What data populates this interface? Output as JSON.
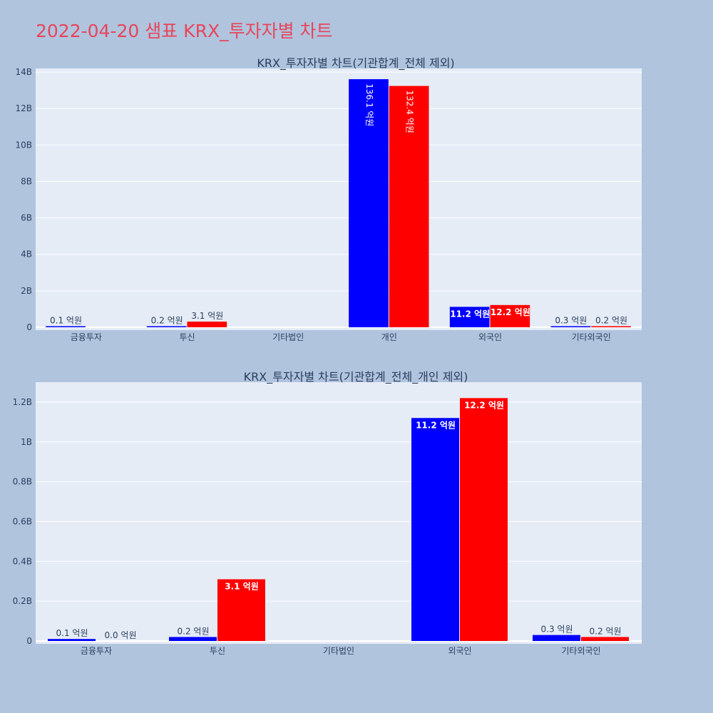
{
  "title": "2022-04-20 샘표 KRX_투자자별 차트",
  "colors": {
    "background": "#b0c4de",
    "plot_bg": "#e5ecf6",
    "series1": "#0000ff",
    "series2": "#ff0000",
    "title": "#e8455a",
    "axis_text": "#2a3f5f"
  },
  "chart_data": [
    {
      "type": "bar",
      "title": "KRX_투자자별 차트(기관합계_전체 제외)",
      "categories": [
        "금융투자",
        "투신",
        "기타법인",
        "개인",
        "외국인",
        "기타외국인"
      ],
      "ylim": [
        0,
        14.2
      ],
      "yticks": [
        0,
        2,
        4,
        6,
        8,
        10,
        12,
        14
      ],
      "ytick_labels": [
        "0",
        "2B",
        "4B",
        "6B",
        "8B",
        "10B",
        "12B",
        "14B"
      ],
      "grid": true,
      "series": [
        {
          "values": [
            0.01,
            0.02,
            0,
            13.61,
            1.12,
            0.03
          ],
          "labels": [
            "0.1 억원",
            "0.2 억원",
            "",
            "136.1 억원",
            "11.2 억원",
            "0.3 억원"
          ]
        },
        {
          "values": [
            0,
            0.31,
            0,
            13.24,
            1.22,
            0.02
          ],
          "labels": [
            "",
            "3.1 억원",
            "",
            "132.4 억원",
            "12.2 억원",
            "0.2 억원"
          ]
        }
      ]
    },
    {
      "type": "bar",
      "title": "KRX_투자자별 차트(기관합계_전체_개인 제외)",
      "categories": [
        "금융투자",
        "투신",
        "기타법인",
        "외국인",
        "기타외국인"
      ],
      "ylim": [
        0,
        1.3
      ],
      "yticks": [
        0,
        0.2,
        0.4,
        0.6,
        0.8,
        1.0,
        1.2
      ],
      "ytick_labels": [
        "0",
        "0.2B",
        "0.4B",
        "0.6B",
        "0.8B",
        "1B",
        "1.2B"
      ],
      "grid": true,
      "series": [
        {
          "values": [
            0.01,
            0.02,
            0,
            1.12,
            0.03
          ],
          "labels": [
            "0.1 억원",
            "0.2 억원",
            "",
            "11.2 억원",
            "0.3 억원"
          ]
        },
        {
          "values": [
            0.0,
            0.31,
            0,
            1.22,
            0.02
          ],
          "labels": [
            "0.0 억원",
            "3.1 억원",
            "",
            "12.2 억원",
            "0.2 억원"
          ]
        }
      ]
    }
  ]
}
